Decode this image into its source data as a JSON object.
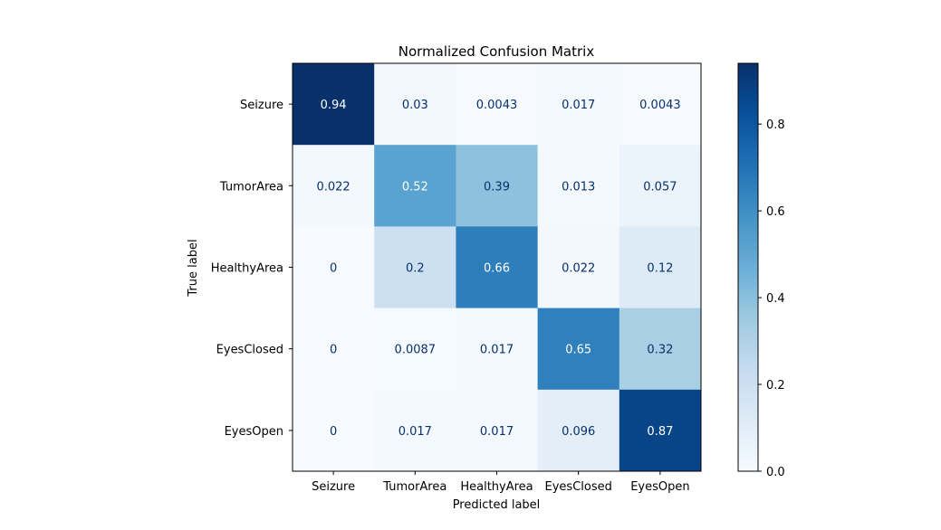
{
  "chart_data": {
    "type": "heatmap",
    "title": "Normalized Confusion Matrix",
    "xlabel": "Predicted label",
    "ylabel": "True label",
    "x_categories": [
      "Seizure",
      "TumorArea",
      "HealthyArea",
      "EyesClosed",
      "EyesOpen"
    ],
    "y_categories": [
      "Seizure",
      "TumorArea",
      "HealthyArea",
      "EyesClosed",
      "EyesOpen"
    ],
    "values": [
      [
        0.94,
        0.03,
        0.0043,
        0.017,
        0.0043
      ],
      [
        0.022,
        0.52,
        0.39,
        0.013,
        0.057
      ],
      [
        0,
        0.2,
        0.66,
        0.022,
        0.12
      ],
      [
        0,
        0.0087,
        0.017,
        0.65,
        0.32
      ],
      [
        0,
        0.017,
        0.017,
        0.096,
        0.87
      ]
    ],
    "value_labels": [
      [
        "0.94",
        "0.03",
        "0.0043",
        "0.017",
        "0.0043"
      ],
      [
        "0.022",
        "0.52",
        "0.39",
        "0.013",
        "0.057"
      ],
      [
        "0",
        "0.2",
        "0.66",
        "0.022",
        "0.12"
      ],
      [
        "0",
        "0.0087",
        "0.017",
        "0.65",
        "0.32"
      ],
      [
        "0",
        "0.017",
        "0.017",
        "0.096",
        "0.87"
      ]
    ],
    "colormap": "Blues",
    "colorbar": {
      "range": [
        0,
        0.94
      ],
      "ticks": [
        0.0,
        0.2,
        0.4,
        0.6,
        0.8
      ],
      "tick_labels": [
        "0.0",
        "0.2",
        "0.4",
        "0.6",
        "0.8"
      ]
    },
    "grid": false,
    "colors": {
      "low": "#f7fbff",
      "high": "#08306b",
      "text_dark": "#08306b",
      "text_light": "#ffffff"
    }
  }
}
